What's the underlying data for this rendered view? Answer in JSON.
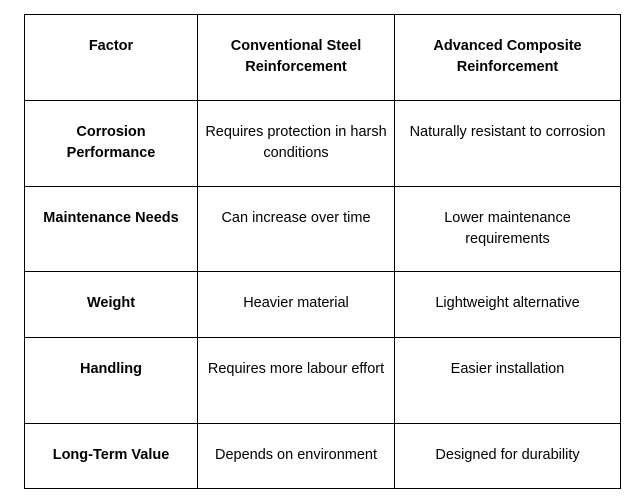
{
  "table": {
    "headers": [
      "Factor",
      "Conventional Steel Reinforcement",
      "Advanced Composite Reinforcement"
    ],
    "rows": [
      [
        "Corrosion Performance",
        "Requires protection in harsh conditions",
        "Naturally resistant to corrosion"
      ],
      [
        "Maintenance Needs",
        "Can increase over time",
        "Lower maintenance requirements"
      ],
      [
        "Weight",
        "Heavier material",
        "Lightweight alternative"
      ],
      [
        "Handling",
        "Requires more labour effort",
        "Easier installation"
      ],
      [
        "Long-Term Value",
        "Depends on environment",
        "Designed for durability"
      ]
    ]
  }
}
